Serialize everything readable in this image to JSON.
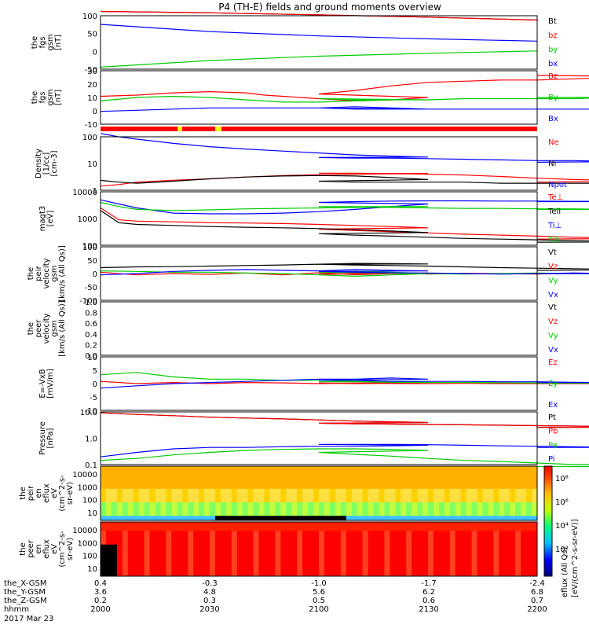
{
  "title": "P4 (TH-E) fields and ground moments overview",
  "footer": {
    "rows": [
      {
        "label": "the_X-GSM",
        "values": [
          "0.4",
          "-0.3",
          "-1.0",
          "-1.7",
          "-2.4"
        ]
      },
      {
        "label": "the_Y-GSM",
        "values": [
          "3.6",
          "4.8",
          "5.6",
          "6.2",
          "6.8"
        ]
      },
      {
        "label": "the_Z-GSM",
        "values": [
          "0.2",
          "0.3",
          "0.5",
          "0.6",
          "0.7"
        ]
      },
      {
        "label": "hhmm",
        "values": [
          "2000",
          "2030",
          "2100",
          "2130",
          "2200"
        ]
      }
    ],
    "date": "2017 Mar 23"
  },
  "colorbar": {
    "label": "[eV/(cm^2-s-sr-eV)]",
    "label_alt": "eflux (All Qs)",
    "ticks": [
      "10⁸",
      "10⁶",
      "10⁴",
      "10²"
    ]
  },
  "chart_data": [
    {
      "type": "line",
      "ylabel": [
        "the",
        "fgs",
        "gsm",
        "[nT]"
      ],
      "yticks": [
        "100",
        "50",
        "0",
        "-50"
      ],
      "ylim": [
        -80,
        105
      ],
      "x": [
        2000,
        2030,
        2100,
        2130,
        2200
      ],
      "series": [
        {
          "name": "Bt",
          "color": "#000000",
          "values": [
            120,
            115,
            108,
            100,
            90
          ]
        },
        {
          "name": "bz",
          "color": "#ff0000",
          "values": [
            120,
            115,
            108,
            100,
            90
          ]
        },
        {
          "name": "by",
          "color": "#00cc00",
          "values": [
            -73,
            -50,
            -35,
            -25,
            -17
          ]
        },
        {
          "name": "bx",
          "color": "#0000ff",
          "values": [
            75,
            50,
            35,
            25,
            17
          ]
        }
      ]
    },
    {
      "type": "line",
      "ylabel": [
        "the",
        "fgs",
        "gsm",
        "[nT]"
      ],
      "yticks": [
        "30",
        "20",
        "10",
        "0",
        "-10"
      ],
      "ylim": [
        -16,
        30
      ],
      "x": [
        2000,
        2010,
        2020,
        2030,
        2040,
        2045,
        2050,
        2060,
        2070,
        2080,
        2090,
        2100,
        2110,
        2120,
        2130,
        2140,
        2150,
        2160,
        2170,
        2180,
        2190,
        2200
      ],
      "series": [
        {
          "name": "Bz",
          "color": "#ff0000",
          "values": [
            8,
            9,
            11,
            12,
            11,
            9,
            8,
            6,
            4,
            5,
            7,
            10,
            13,
            17,
            20,
            21,
            22,
            22,
            23,
            24,
            25,
            26
          ]
        },
        {
          "name": "By",
          "color": "#00cc00",
          "values": [
            4,
            7,
            8,
            7,
            5,
            4,
            3,
            3,
            4,
            5,
            5,
            6,
            5,
            5,
            5,
            6,
            6,
            6,
            6,
            7,
            7,
            7
          ]
        },
        {
          "name": "Bx",
          "color": "#0000ff",
          "values": [
            -5,
            -4,
            -3,
            -2,
            -2,
            -2,
            -2,
            -2,
            -1,
            -2,
            -3,
            -2,
            -3,
            -3,
            -3,
            -3,
            -3,
            -3,
            -3,
            -3,
            -3,
            -3
          ]
        }
      ]
    },
    {
      "type": "line",
      "ylabel": [
        "Density",
        "[1/cc]",
        "[cm-3]"
      ],
      "yticks": [
        "100",
        "10",
        "1"
      ],
      "scale": "log",
      "ylim": [
        0.3,
        200
      ],
      "x": [
        2000,
        2005,
        2010,
        2020,
        2030,
        2040,
        2050,
        2060,
        2070,
        2080,
        2090,
        2100,
        2110,
        2120,
        2130,
        2140,
        2150,
        2160,
        2170,
        2180,
        2190,
        2200
      ],
      "series": [
        {
          "name": "Ne",
          "color": "#ff0000",
          "values": [
            0.5,
            0.6,
            0.8,
            1.0,
            1.2,
            1.5,
            1.8,
            2.0,
            2.1,
            2.2,
            2.3,
            2.4,
            2.4,
            2.3,
            2.1,
            1.9,
            1.6,
            1.3,
            1.1,
            1.0,
            0.9,
            0.8
          ]
        },
        {
          "name": "Ni",
          "color": "#000000",
          "values": [
            1.0,
            0.8,
            0.7,
            0.9,
            1.2,
            1.5,
            1.7,
            1.8,
            1.7,
            1.4,
            1.1,
            0.9,
            0.8,
            0.8,
            0.8,
            0.8,
            0.7,
            0.7,
            0.7,
            0.7,
            0.7,
            0.7
          ]
        },
        {
          "name": "Npot",
          "color": "#0000ff",
          "values": [
            300,
            200,
            150,
            90,
            60,
            45,
            35,
            28,
            22,
            19,
            17,
            16,
            15,
            15,
            14,
            13,
            12,
            11,
            11,
            10,
            10,
            9
          ]
        }
      ]
    },
    {
      "type": "line",
      "ylabel": [
        "magt3",
        "[eV]"
      ],
      "yticks": [
        "10000",
        "1000",
        "100"
      ],
      "scale": "log",
      "ylim": [
        100,
        10000
      ],
      "x": [
        2000,
        2005,
        2010,
        2020,
        2030,
        2040,
        2050,
        2060,
        2070,
        2080,
        2090,
        2100,
        2110,
        2120,
        2130,
        2140,
        2150,
        2160,
        2170,
        2180,
        2190,
        2200
      ],
      "series": [
        {
          "name": "Te⊥",
          "color": "#ff0000",
          "values": [
            2500,
            900,
            800,
            750,
            700,
            680,
            650,
            600,
            550,
            500,
            450,
            400,
            360,
            320,
            290,
            260,
            240,
            220,
            200,
            190,
            180,
            170
          ]
        },
        {
          "name": "Tell",
          "color": "#000000",
          "values": [
            2000,
            700,
            600,
            550,
            500,
            470,
            450,
            420,
            380,
            340,
            300,
            270,
            240,
            220,
            200,
            180,
            170,
            160,
            150,
            140,
            135,
            130
          ]
        },
        {
          "name": "Ti⊥",
          "color": "#0000ff",
          "values": [
            5000,
            3500,
            2500,
            1600,
            1500,
            1500,
            1600,
            1800,
            2200,
            2800,
            3500,
            4000,
            4300,
            4500,
            4600,
            4600,
            4500,
            4500,
            4400,
            4400,
            4300,
            4300
          ]
        },
        {
          "name": "Till",
          "color": "#00cc00",
          "values": [
            4000,
            2800,
            2200,
            2000,
            2100,
            2300,
            2400,
            2500,
            2600,
            2700,
            2800,
            2800,
            2700,
            2600,
            2500,
            2400,
            2400,
            2300,
            2300,
            2200,
            2200,
            2200
          ]
        }
      ]
    },
    {
      "type": "line",
      "ylabel": [
        "the",
        "peir",
        "velocity",
        "gsm",
        "[km/s (All Qs)]"
      ],
      "yticks": [
        "100",
        "50",
        "0",
        "-50",
        "-100"
      ],
      "ylim": [
        -100,
        100
      ],
      "x": [
        2000,
        2010,
        2020,
        2030,
        2040,
        2050,
        2060,
        2070,
        2080,
        2090,
        2100,
        2110,
        2120,
        2130,
        2140,
        2150,
        2160,
        2170,
        2180,
        2190,
        2200
      ],
      "series": [
        {
          "name": "Vt",
          "color": "#000000",
          "values": [
            22,
            25,
            26,
            28,
            30,
            32,
            35,
            38,
            37,
            36,
            35,
            32,
            30,
            28,
            25,
            22,
            20,
            18,
            16,
            14,
            12
          ]
        },
        {
          "name": "Vz",
          "color": "#ff0000",
          "values": [
            5,
            -5,
            0,
            -3,
            2,
            -5,
            3,
            -4,
            0,
            2,
            -3,
            0,
            4,
            -2,
            1,
            0,
            -2,
            2,
            0,
            1,
            0
          ]
        },
        {
          "name": "Vy",
          "color": "#00cc00",
          "values": [
            10,
            8,
            5,
            5,
            2,
            0,
            -5,
            -10,
            -5,
            0,
            5,
            8,
            5,
            0,
            -2,
            0,
            2,
            0,
            -1,
            0,
            0
          ]
        },
        {
          "name": "Vx",
          "color": "#0000ff",
          "values": [
            -5,
            0,
            8,
            12,
            15,
            12,
            10,
            15,
            12,
            10,
            8,
            5,
            3,
            2,
            0,
            -2,
            0,
            2,
            0,
            0,
            0
          ]
        }
      ]
    },
    {
      "type": "line",
      "ylabel": [
        "the",
        "peer",
        "velocity",
        "gsm",
        "[km/s (All Qs)]"
      ],
      "yticks": [
        "1.0",
        "0.8",
        "0.6",
        "0.4",
        "0.2",
        "0.0"
      ],
      "ylim": [
        0,
        1
      ],
      "x": [],
      "series": [
        {
          "name": "Vt",
          "color": "#000000",
          "values": []
        },
        {
          "name": "Vz",
          "color": "#ff0000",
          "values": []
        },
        {
          "name": "Vy",
          "color": "#00cc00",
          "values": []
        },
        {
          "name": "Vx",
          "color": "#0000ff",
          "values": []
        }
      ]
    },
    {
      "type": "line",
      "ylabel": [
        "E=-VxB",
        "[mV/m]"
      ],
      "yticks": [
        "10",
        "5",
        "0",
        "-5",
        "-10"
      ],
      "ylim": [
        -12,
        12
      ],
      "x": [
        2000,
        2010,
        2020,
        2030,
        2040,
        2050,
        2060,
        2070,
        2080,
        2090,
        2100,
        2110,
        2120,
        2130,
        2140,
        2150,
        2160,
        2170,
        2180,
        2190,
        2200
      ],
      "series": [
        {
          "name": "Ez",
          "color": "#ff0000",
          "values": [
            1,
            0,
            0.5,
            0,
            0.5,
            0.3,
            0,
            0.2,
            0.3,
            0,
            0.2,
            0,
            0.1,
            0,
            0.1,
            0,
            0,
            0.1,
            0,
            0,
            0
          ]
        },
        {
          "name": "Ey",
          "color": "#00cc00",
          "values": [
            4,
            5,
            3,
            2,
            2,
            1.5,
            1.5,
            1,
            1,
            1,
            0.8,
            0.8,
            0.6,
            0.5,
            0.5,
            0.4,
            0.3,
            0.3,
            0.3,
            0.2,
            0.2
          ]
        },
        {
          "name": "Ex",
          "color": "#0000ff",
          "values": [
            -2,
            -1,
            0,
            0.5,
            1,
            1.5,
            2,
            2,
            2.5,
            2,
            1.5,
            1.5,
            1,
            1,
            1,
            0.8,
            0.8,
            0.6,
            0.5,
            0.5,
            0.5
          ]
        }
      ]
    },
    {
      "type": "line",
      "ylabel": [
        "Pressure",
        "[nPa]"
      ],
      "yticks": [
        "10.0",
        "1.0",
        "0.1"
      ],
      "scale": "log",
      "ylim": [
        0.05,
        20
      ],
      "x": [
        2000,
        2010,
        2020,
        2030,
        2040,
        2050,
        2060,
        2070,
        2080,
        2090,
        2100,
        2110,
        2120,
        2130,
        2140,
        2150,
        2160,
        2170,
        2180,
        2190,
        2200
      ],
      "series": [
        {
          "name": "Pt",
          "color": "#000000",
          "values": [
            18,
            15,
            13,
            11,
            10,
            9,
            8,
            7,
            6.5,
            6,
            5.5,
            5.2,
            5,
            4.8,
            4.6,
            4.4,
            4.2,
            4,
            3.8,
            3.6,
            3.4
          ]
        },
        {
          "name": "Pb",
          "color": "#ff0000",
          "values": [
            18,
            15,
            13,
            11,
            10,
            9,
            8,
            7,
            6.5,
            6,
            5.5,
            5.2,
            5,
            4.8,
            4.6,
            4.4,
            4.2,
            4,
            3.8,
            3.6,
            3.4
          ]
        },
        {
          "name": "Pe",
          "color": "#00cc00",
          "values": [
            0.08,
            0.1,
            0.15,
            0.2,
            0.25,
            0.28,
            0.3,
            0.3,
            0.28,
            0.25,
            0.2,
            0.16,
            0.13,
            0.1,
            0.08,
            0.07,
            0.06,
            0.05,
            0.05,
            0.04,
            0.04
          ]
        },
        {
          "name": "Pi",
          "color": "#0000ff",
          "values": [
            0.12,
            0.2,
            0.3,
            0.35,
            0.35,
            0.38,
            0.4,
            0.4,
            0.42,
            0.45,
            0.5,
            0.5,
            0.5,
            0.48,
            0.45,
            0.42,
            0.4,
            0.38,
            0.36,
            0.35,
            0.35
          ]
        }
      ]
    },
    {
      "type": "heatmap",
      "ylabel": [
        "the",
        "peir",
        "en",
        "eflux",
        "eV",
        "(cm^2-s-",
        "sr-eV)"
      ],
      "yticks": [
        "10000",
        "1000",
        "100",
        "10"
      ]
    },
    {
      "type": "heatmap",
      "ylabel": [
        "the",
        "peer",
        "en",
        "eflux",
        "eV",
        "(cm^2-s-",
        "sr-eV)"
      ],
      "yticks": [
        "10000",
        "1000",
        "100",
        "10"
      ]
    }
  ]
}
